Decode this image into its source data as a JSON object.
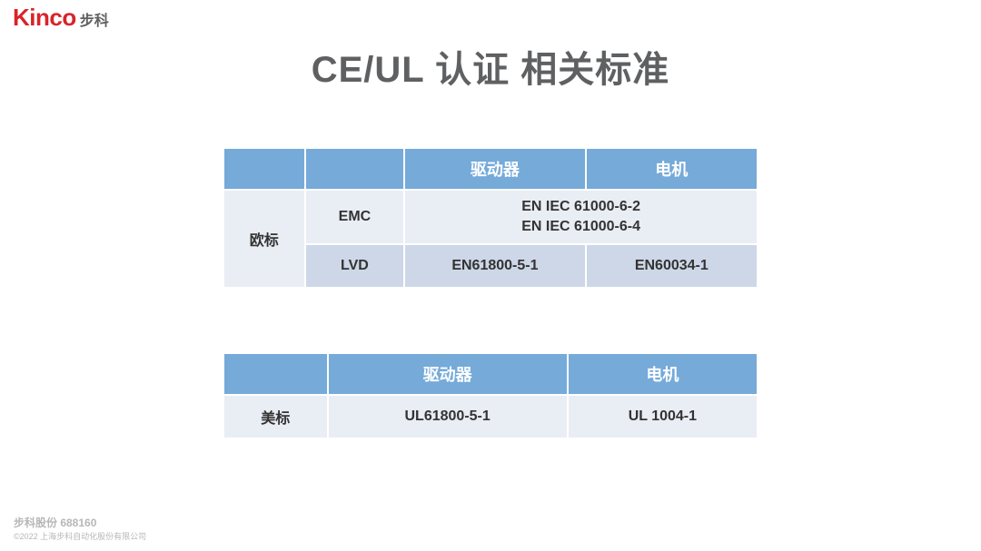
{
  "header": {
    "logo_brand": "Kinco",
    "logo_cn": "步科"
  },
  "title": "CE/UL 认证 相关标准",
  "colors": {
    "header_blue": "#75aad9",
    "cell_grey": "#e9edf4",
    "cell_grey_alt": "#cdd7e7",
    "brand_red": "#d8242a",
    "text_grey": "#5f6062",
    "footer_grey": "#b7b7b7",
    "background": "#ffffff",
    "border": "#ffffff"
  },
  "table1": {
    "columns": [
      "",
      "",
      "驱动器",
      "电机"
    ],
    "region_label": "欧标",
    "rows": [
      {
        "label": "EMC",
        "driver": "EN IEC 61000-6-2\nEN IEC 61000-6-4",
        "motor_merged_with_driver": true
      },
      {
        "label": "LVD",
        "driver": "EN61800-5-1",
        "motor": "EN60034-1"
      }
    ]
  },
  "table2": {
    "columns": [
      "",
      "驱动器",
      "电机"
    ],
    "region_label": "美标",
    "rows": [
      {
        "driver": "UL61800-5-1",
        "motor": "UL 1004-1"
      }
    ]
  },
  "footer": {
    "line1": "步科股份  688160",
    "line2": "©2022  上海步科自动化股份有限公司"
  }
}
